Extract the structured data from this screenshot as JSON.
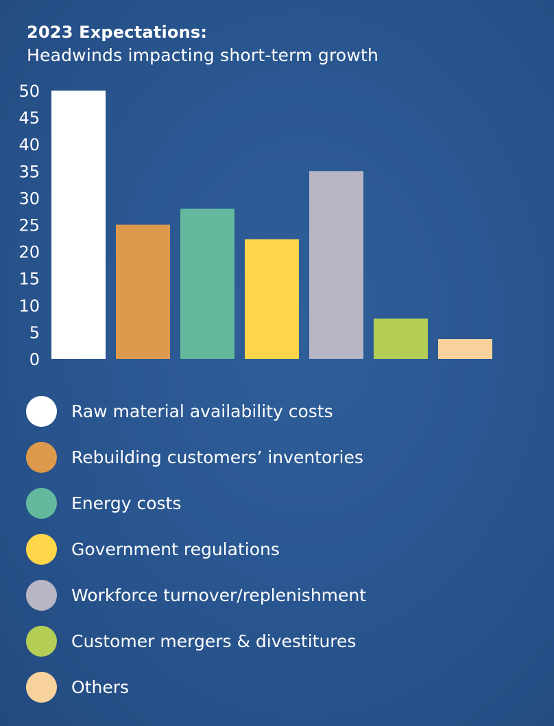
{
  "chart_data": {
    "type": "bar",
    "title": "2023 Expectations:",
    "subtitle": "Headwinds impacting short-term growth",
    "categories": [
      "Raw material availability costs",
      "Rebuilding customers’ inventories",
      "Energy costs",
      "Government regulations",
      "Workforce turnover/replenishment",
      "Customer mergers & divestitures",
      "Others"
    ],
    "values": [
      50,
      25,
      28,
      22.3,
      35,
      7.5,
      3.7
    ],
    "colors": [
      "#ffffff",
      "#dd9a4c",
      "#63b89d",
      "#ffd54a",
      "#b8b5c5",
      "#b3cd55",
      "#f8d29c"
    ],
    "ylim": [
      0,
      50
    ],
    "yticks": [
      0,
      5,
      10,
      15,
      20,
      25,
      30,
      35,
      40,
      45,
      50
    ],
    "grid": false,
    "legend_position": "bottom"
  }
}
